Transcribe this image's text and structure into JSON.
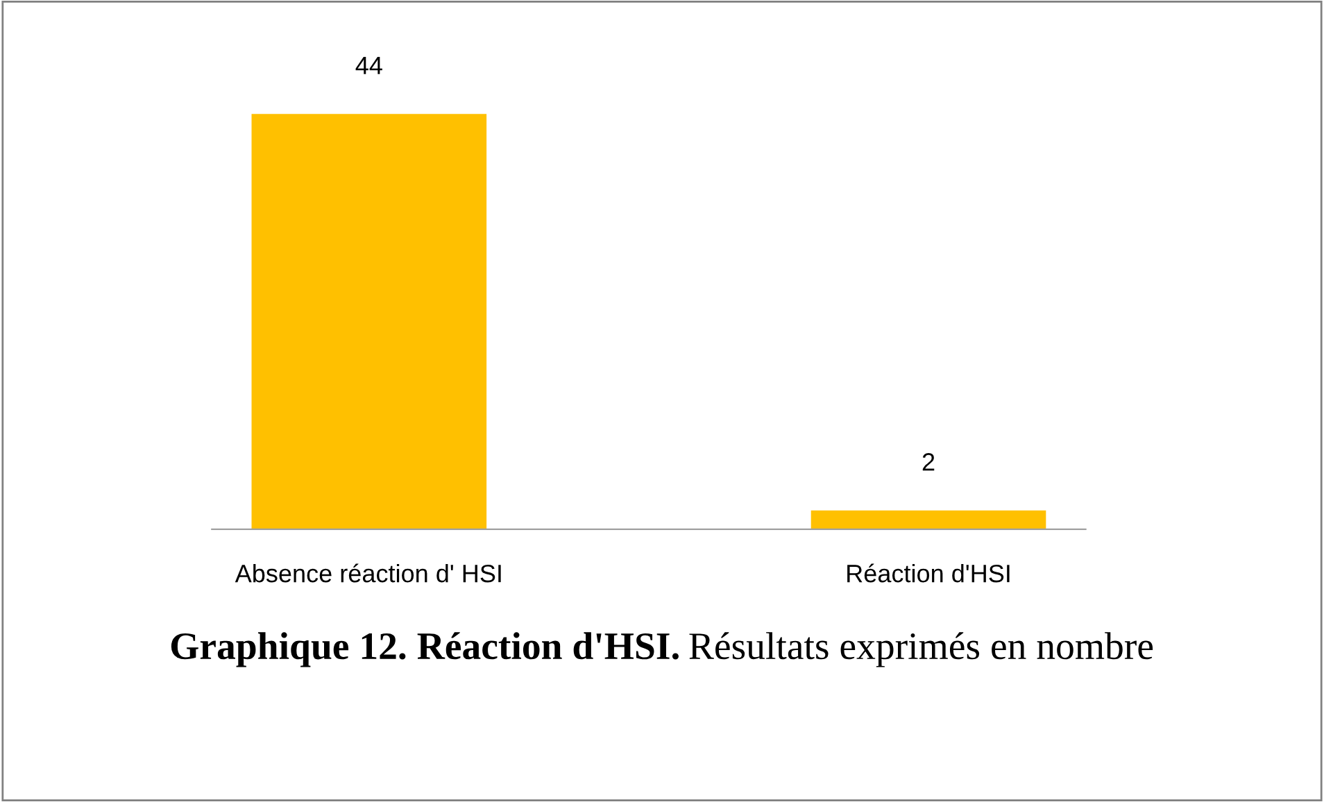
{
  "chart_data": {
    "type": "bar",
    "title": "Graphique 12. Réaction d'HSI.",
    "subtitle": "Résultats exprimés en nombre",
    "categories": [
      "Absence réaction d' HSI",
      "Réaction d'HSI"
    ],
    "values": [
      44,
      2
    ],
    "color": "#ffc000",
    "data_labels": true,
    "grid": false,
    "legend": false
  }
}
